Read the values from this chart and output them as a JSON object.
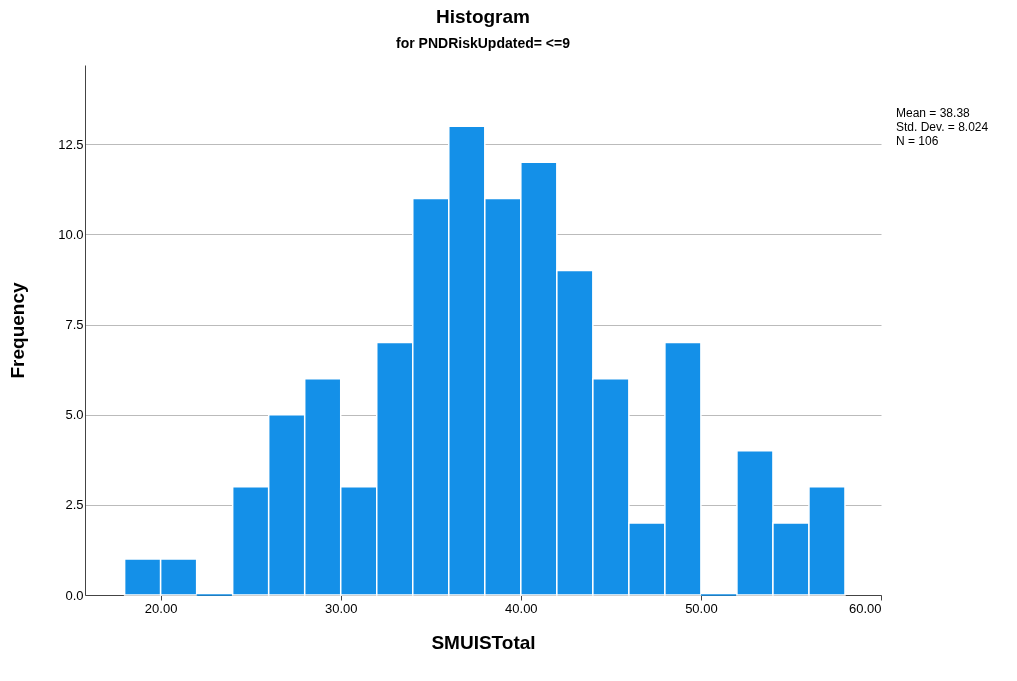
{
  "chart_data": {
    "type": "histogram",
    "title": "Histogram",
    "subtitle": "for PNDRiskUpdated= <=9",
    "xlabel": "SMUISTotal",
    "ylabel": "Frequency",
    "bins": [
      18,
      20,
      22,
      24,
      26,
      28,
      30,
      32,
      34,
      36,
      38,
      40,
      42,
      44,
      46,
      48,
      50,
      52,
      54,
      56,
      58
    ],
    "values": [
      1,
      1,
      0,
      3,
      5,
      6,
      3,
      7,
      11,
      13,
      11,
      12,
      9,
      6,
      2,
      7,
      0,
      4,
      2,
      3
    ],
    "color": "#1490e8",
    "xlim": [
      15.8,
      60
    ],
    "xticks": [
      {
        "value": 20,
        "label": "20.00"
      },
      {
        "value": 30,
        "label": "30.00"
      },
      {
        "value": 40,
        "label": "40.00"
      },
      {
        "value": 50,
        "label": "50.00"
      },
      {
        "value": 60,
        "label": "60.00"
      }
    ],
    "ylim": [
      0,
      14.7
    ],
    "yticks": [
      {
        "value": 0,
        "label": "0.0"
      },
      {
        "value": 2.5,
        "label": "2.5"
      },
      {
        "value": 5,
        "label": "5.0"
      },
      {
        "value": 7.5,
        "label": "7.5"
      },
      {
        "value": 10,
        "label": "10.0"
      },
      {
        "value": 12.5,
        "label": "12.5"
      }
    ],
    "grid": "y",
    "annotations": [
      "Mean = 38.38",
      "Std. Dev. = 8.024",
      "N = 106"
    ]
  }
}
